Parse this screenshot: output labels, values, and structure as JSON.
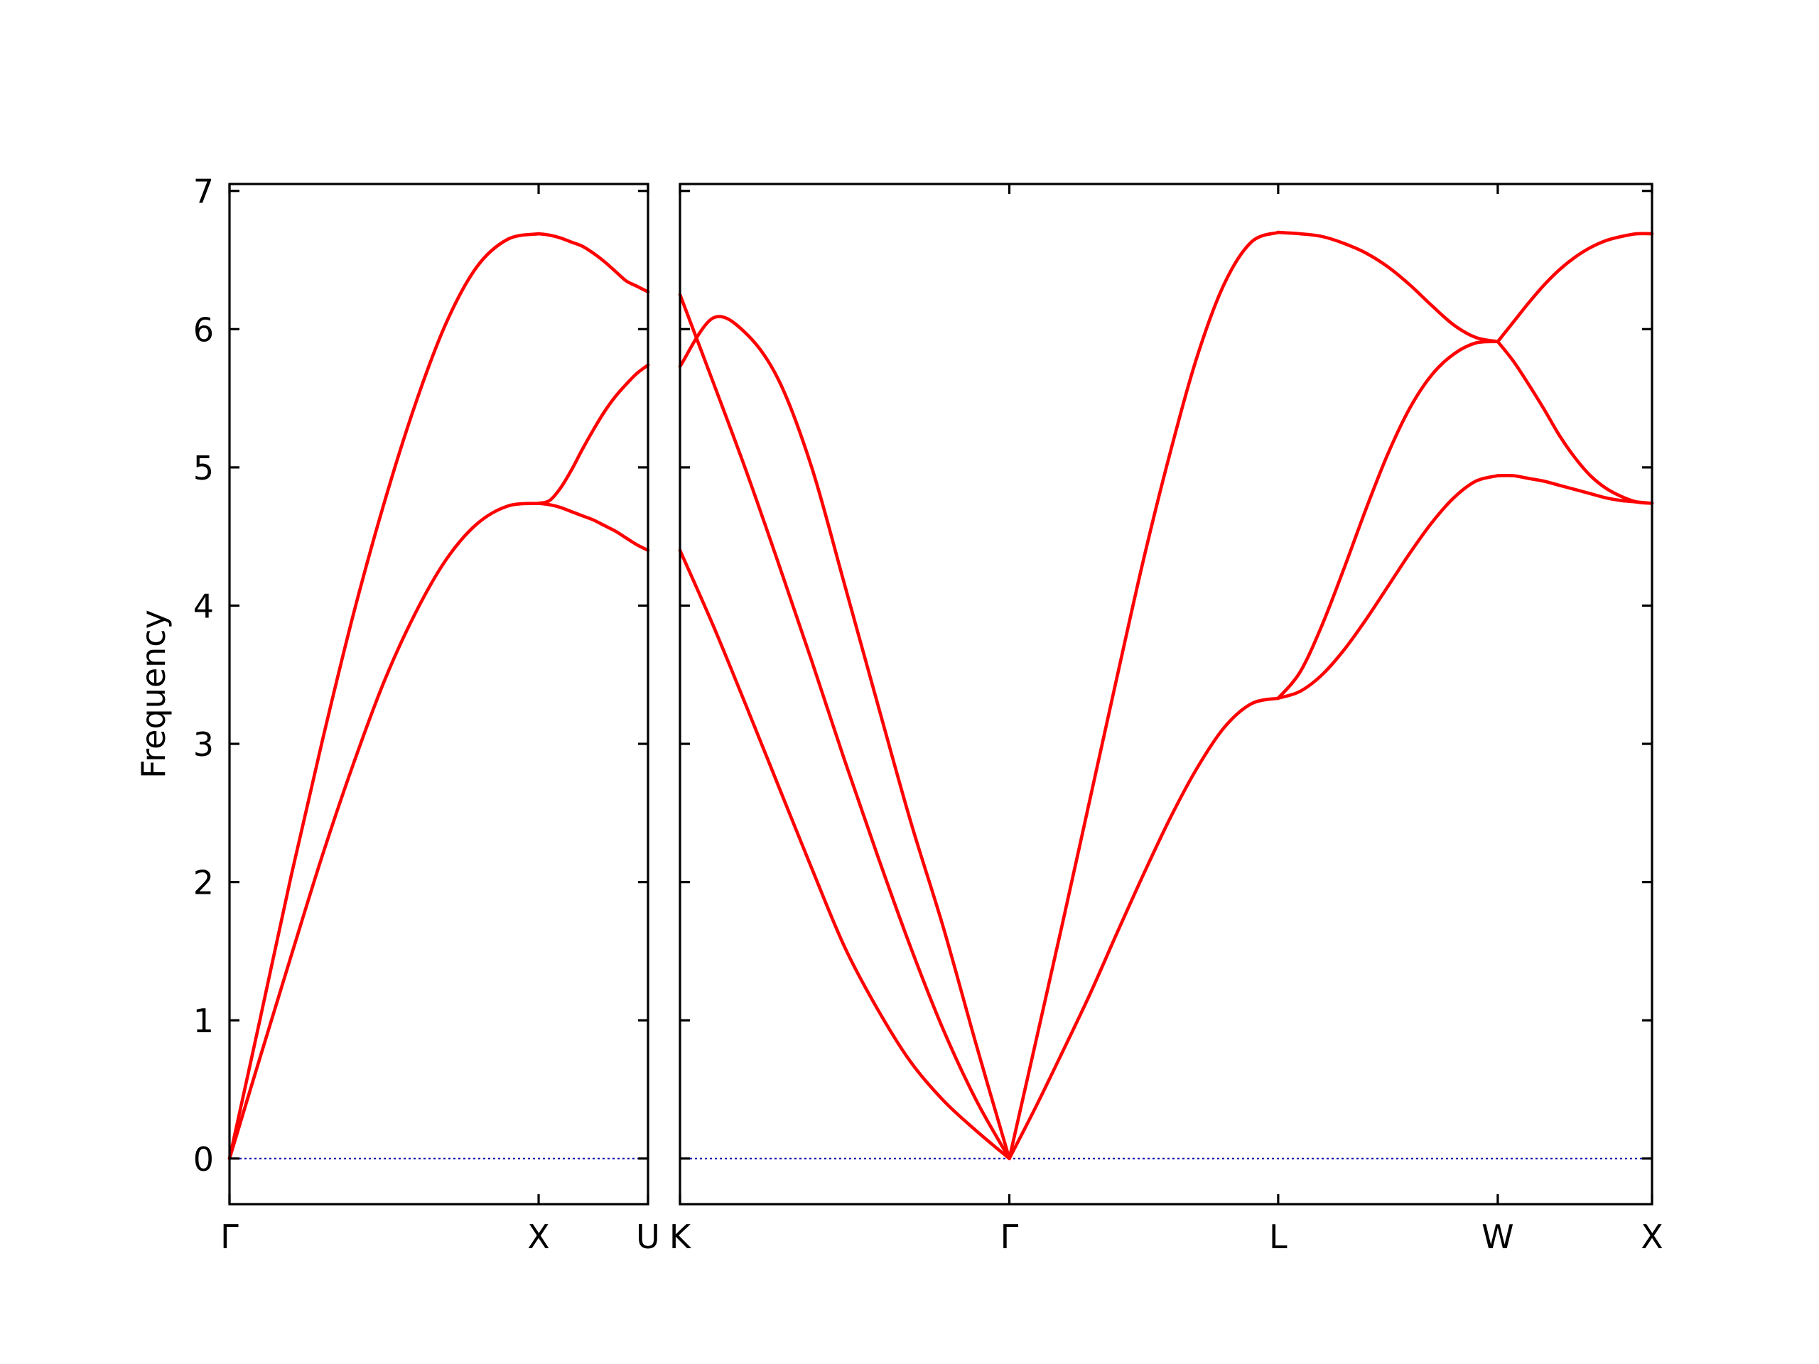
{
  "chart_data": {
    "type": "line",
    "ylabel": "Frequency",
    "ylim": [
      -0.33,
      7.05
    ],
    "yticks": [
      0,
      1,
      2,
      3,
      4,
      5,
      6,
      7
    ],
    "colors": {
      "bands": "#ff0000",
      "zero_line": "#0000aa",
      "frame": "#000000"
    },
    "panels": [
      {
        "xlim": [
          0,
          1.0
        ],
        "xticks": [
          {
            "x": 0,
            "label": "Γ"
          },
          {
            "x": 0.7386,
            "label": "X"
          },
          {
            "x": 1.0,
            "label": "U"
          }
        ],
        "series": [
          {
            "x": [
              0,
              0.0739,
              0.1477,
              0.2216,
              0.2954,
              0.3693,
              0.4432,
              0.517,
              0.5909,
              0.6647,
              0.7386
            ],
            "y": [
              0,
              0.74,
              1.47,
              2.19,
              2.85,
              3.45,
              3.94,
              4.33,
              4.59,
              4.72,
              4.74
            ]
          },
          {
            "x": [
              0,
              0.0739,
              0.1477,
              0.2216,
              0.2954,
              0.3693,
              0.4432,
              0.517,
              0.5909,
              0.6647,
              0.7386
            ],
            "y": [
              0,
              1.02,
              2.05,
              3.02,
              3.93,
              4.74,
              5.45,
              6.04,
              6.45,
              6.65,
              6.69
            ]
          },
          {
            "x": [
              0.7386,
              0.7647,
              0.7908,
              0.8169,
              0.843,
              0.8691,
              0.8952,
              0.9213,
              0.9474,
              0.9735,
              1.0
            ],
            "y": [
              4.74,
              4.76,
              4.85,
              4.98,
              5.13,
              5.27,
              5.4,
              5.51,
              5.6,
              5.68,
              5.74
            ]
          },
          {
            "x": [
              0.7386,
              0.7647,
              0.7908,
              0.8169,
              0.843,
              0.8691,
              0.8952,
              0.9213,
              0.9474,
              0.9735,
              1.0
            ],
            "y": [
              6.69,
              6.68,
              6.66,
              6.63,
              6.6,
              6.55,
              6.49,
              6.42,
              6.35,
              6.31,
              6.27
            ]
          },
          {
            "x": [
              0.7386,
              0.7647,
              0.7908,
              0.8169,
              0.843,
              0.8691,
              0.8952,
              0.9213,
              0.9474,
              0.9735,
              1.0
            ],
            "y": [
              4.74,
              4.73,
              4.71,
              4.68,
              4.65,
              4.62,
              4.58,
              4.54,
              4.49,
              4.44,
              4.4
            ]
          }
        ]
      },
      {
        "xlim": [
          0,
          1.0
        ],
        "xticks": [
          {
            "x": 0,
            "label": "K"
          },
          {
            "x": 0.3388,
            "label": "Γ"
          },
          {
            "x": 0.6154,
            "label": "L"
          },
          {
            "x": 0.8413,
            "label": "W"
          },
          {
            "x": 1.0,
            "label": "X"
          }
        ],
        "series": [
          {
            "x": [
              0,
              0.0339,
              0.0678,
              0.1016,
              0.1355,
              0.1694,
              0.2033,
              0.2372,
              0.271,
              0.3049,
              0.3388
            ],
            "y": [
              4.4,
              3.86,
              3.28,
              2.69,
              2.1,
              1.53,
              1.08,
              0.7,
              0.42,
              0.2,
              0
            ]
          },
          {
            "x": [
              0,
              0.0339,
              0.0678,
              0.1016,
              0.1355,
              0.1694,
              0.2033,
              0.2372,
              0.271,
              0.3049,
              0.3388
            ],
            "y": [
              6.25,
              5.62,
              4.98,
              4.3,
              3.6,
              2.88,
              2.19,
              1.53,
              0.93,
              0.42,
              0
            ]
          },
          {
            "x": [
              0,
              0.0339,
              0.0678,
              0.1016,
              0.1355,
              0.1694,
              0.2033,
              0.2372,
              0.271,
              0.3049,
              0.3388
            ],
            "y": [
              5.73,
              6.08,
              5.97,
              5.63,
              5.0,
              4.15,
              3.29,
              2.44,
              1.67,
              0.82,
              0
            ]
          },
          {
            "x": [
              0.3388,
              0.3665,
              0.3941,
              0.4218,
              0.4495,
              0.4771,
              0.5048,
              0.5324,
              0.5601,
              0.5878,
              0.6154
            ],
            "y": [
              0,
              0.38,
              0.78,
              1.19,
              1.63,
              2.06,
              2.47,
              2.83,
              3.12,
              3.29,
              3.33
            ]
          },
          {
            "x": [
              0.3388,
              0.3665,
              0.3941,
              0.4218,
              0.4495,
              0.4771,
              0.5048,
              0.5324,
              0.5601,
              0.5878,
              0.6154
            ],
            "y": [
              0,
              0.86,
              1.72,
              2.6,
              3.48,
              4.34,
              5.12,
              5.81,
              6.33,
              6.63,
              6.7
            ]
          },
          {
            "x": [
              0.6154,
              0.638,
              0.6606,
              0.6832,
              0.7058,
              0.7284,
              0.7509,
              0.7735,
              0.7961,
              0.8187,
              0.8413
            ],
            "y": [
              3.33,
              3.38,
              3.5,
              3.68,
              3.9,
              4.14,
              4.38,
              4.6,
              4.78,
              4.9,
              4.94
            ]
          },
          {
            "x": [
              0.6154,
              0.638,
              0.6606,
              0.6832,
              0.7058,
              0.7284,
              0.7509,
              0.7735,
              0.7961,
              0.8187,
              0.8413
            ],
            "y": [
              3.33,
              3.52,
              3.86,
              4.27,
              4.7,
              5.1,
              5.43,
              5.67,
              5.82,
              5.9,
              5.91
            ]
          },
          {
            "x": [
              0.6154,
              0.638,
              0.6606,
              0.6832,
              0.7058,
              0.7284,
              0.7509,
              0.7735,
              0.7961,
              0.8187,
              0.8413
            ],
            "y": [
              6.7,
              6.69,
              6.67,
              6.62,
              6.55,
              6.45,
              6.32,
              6.17,
              6.03,
              5.94,
              5.91
            ]
          },
          {
            "x": [
              0.8413,
              0.8572,
              0.8731,
              0.889,
              0.9048,
              0.9207,
              0.9366,
              0.9524,
              0.9683,
              0.9841,
              1.0
            ],
            "y": [
              4.94,
              4.94,
              4.92,
              4.9,
              4.87,
              4.84,
              4.81,
              4.78,
              4.76,
              4.75,
              4.74
            ]
          },
          {
            "x": [
              0.8413,
              0.8572,
              0.8731,
              0.889,
              0.9048,
              0.9207,
              0.9366,
              0.9524,
              0.9683,
              0.9841,
              1.0
            ],
            "y": [
              5.91,
              5.77,
              5.6,
              5.42,
              5.23,
              5.07,
              4.94,
              4.85,
              4.79,
              4.75,
              4.74
            ]
          },
          {
            "x": [
              0.8413,
              0.8572,
              0.8731,
              0.889,
              0.9048,
              0.9207,
              0.9366,
              0.9524,
              0.9683,
              0.9841,
              1.0
            ],
            "y": [
              5.91,
              6.05,
              6.19,
              6.32,
              6.43,
              6.52,
              6.59,
              6.64,
              6.67,
              6.69,
              6.69
            ]
          }
        ]
      }
    ]
  }
}
